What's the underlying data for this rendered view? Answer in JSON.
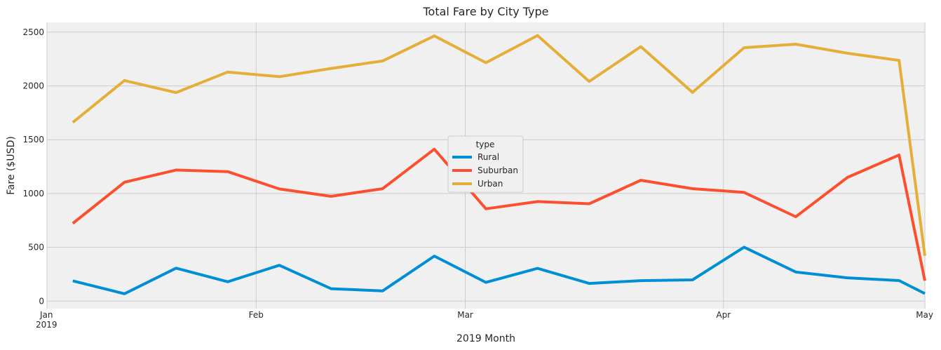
{
  "chart_data": {
    "type": "line",
    "title": "Total Fare by City Type",
    "xlabel": "2019 Month",
    "ylabel": "Fare ($USD)",
    "x": [
      "2019-01-06",
      "2019-01-13",
      "2019-01-20",
      "2019-01-27",
      "2019-02-03",
      "2019-02-10",
      "2019-02-17",
      "2019-02-24",
      "2019-03-03",
      "2019-03-10",
      "2019-03-17",
      "2019-03-24",
      "2019-03-31",
      "2019-04-07",
      "2019-04-14",
      "2019-04-21",
      "2019-04-28"
    ],
    "x_index_range": [
      -0.5,
      16.5
    ],
    "ylim": [
      -70,
      2590
    ],
    "yticks": [
      0,
      500,
      1000,
      1500,
      2000,
      2500
    ],
    "xticks": [
      {
        "pos": -0.5,
        "label": "Jan",
        "sublabel": "2019"
      },
      {
        "pos": 3.55,
        "label": "Feb",
        "sublabel": ""
      },
      {
        "pos": 7.6,
        "label": "Mar",
        "sublabel": ""
      },
      {
        "pos": 12.6,
        "label": "Apr",
        "sublabel": ""
      },
      {
        "pos": 16.5,
        "label": "May",
        "sublabel": ""
      }
    ],
    "grid": true,
    "legend": {
      "title": "type",
      "position": "center"
    },
    "series": [
      {
        "name": "Rural",
        "color": "#008fd5",
        "values": [
          188,
          68,
          306,
          180,
          333,
          115,
          95,
          418,
          174,
          304,
          164,
          190,
          197,
          501,
          270,
          216,
          191
        ]
      },
      {
        "name": "Suburban",
        "color": "#fc4f30",
        "values": [
          722,
          1105,
          1218,
          1203,
          1042,
          974,
          1045,
          1412,
          858,
          925,
          905,
          1123,
          1045,
          1010,
          784,
          1149,
          1358
        ]
      },
      {
        "name": "Urban",
        "color": "#e5ae38",
        "values": [
          1661,
          2050,
          1938,
          2129,
          2086,
          2162,
          2232,
          2465,
          2216,
          2469,
          2042,
          2365,
          1940,
          2355,
          2388,
          2304,
          2237
        ]
      }
    ],
    "endpoints": [
      {
        "name": "Rural",
        "value": 70
      },
      {
        "name": "Suburban",
        "value": 190
      },
      {
        "name": "Urban",
        "value": 420
      }
    ]
  }
}
